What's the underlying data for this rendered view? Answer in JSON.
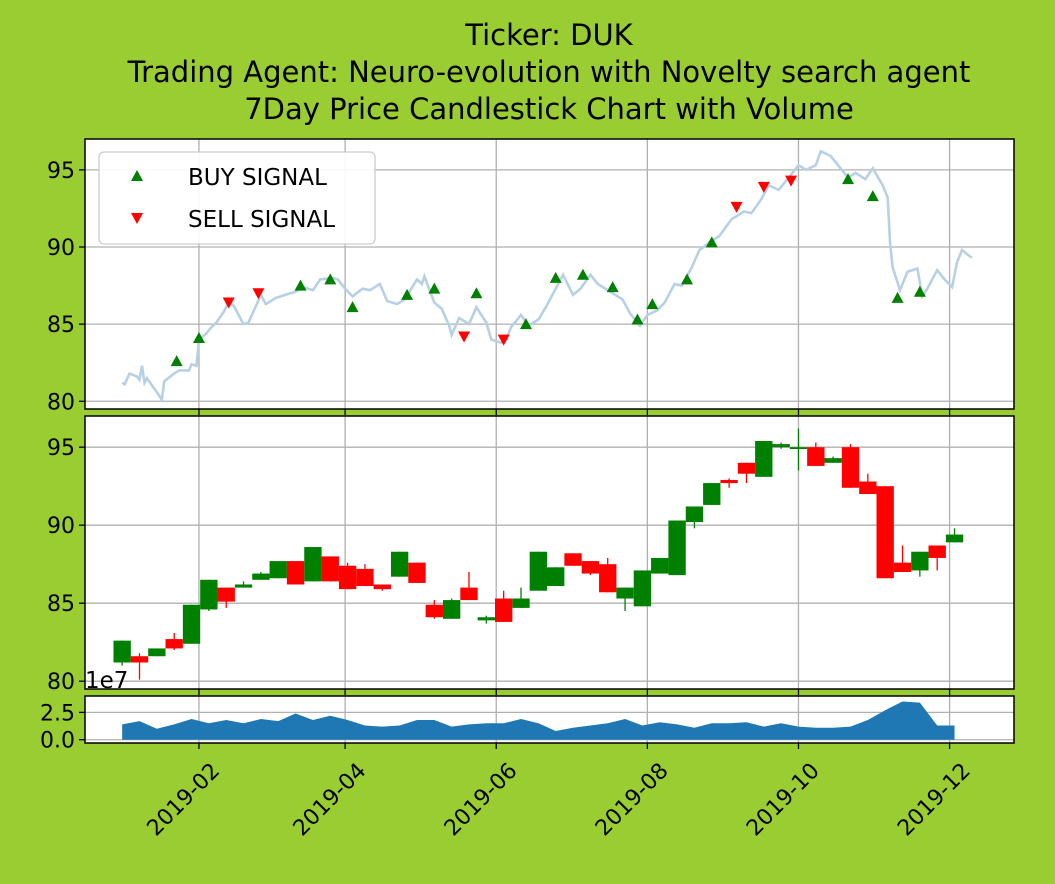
{
  "figure": {
    "background": "#9acd32",
    "title_lines": [
      "Ticker: DUK",
      "Trading Agent: Neuro-evolution with Novelty search agent",
      "7Day Price Candlestick Chart with Volume"
    ]
  },
  "chart_data": [
    {
      "type": "line",
      "panel": "price",
      "ylim": [
        79.5,
        97.0
      ],
      "yticks": [
        80,
        85,
        90,
        95
      ],
      "grid": true,
      "line_color": "#b8d0e6",
      "legend": {
        "placement": "top-left",
        "entries": [
          "BUY SIGNAL",
          "SELL SIGNAL"
        ]
      },
      "close": [
        [
          "2019-01-01",
          81.2
        ],
        [
          "2019-01-02",
          81.1
        ],
        [
          "2019-01-04",
          81.8
        ],
        [
          "2019-01-07",
          81.6
        ],
        [
          "2019-01-08",
          81.4
        ],
        [
          "2019-01-09",
          82.3
        ],
        [
          "2019-01-10",
          81.2
        ],
        [
          "2019-01-11",
          81.5
        ],
        [
          "2019-01-14",
          80.8
        ],
        [
          "2019-01-15",
          80.6
        ],
        [
          "2019-01-17",
          80.1
        ],
        [
          "2019-01-18",
          81.3
        ],
        [
          "2019-01-22",
          81.8
        ],
        [
          "2019-01-24",
          82.0
        ],
        [
          "2019-01-28",
          82.0
        ],
        [
          "2019-01-29",
          82.4
        ],
        [
          "2019-01-31",
          82.3
        ],
        [
          "2019-02-01",
          84.0
        ],
        [
          "2019-02-04",
          84.4
        ],
        [
          "2019-02-06",
          84.8
        ],
        [
          "2019-02-08",
          85.1
        ],
        [
          "2019-02-11",
          85.8
        ],
        [
          "2019-02-13",
          86.4
        ],
        [
          "2019-02-15",
          86.2
        ],
        [
          "2019-02-19",
          85.0
        ],
        [
          "2019-02-21",
          85.1
        ],
        [
          "2019-02-26",
          86.9
        ],
        [
          "2019-02-28",
          86.3
        ],
        [
          "2019-03-04",
          86.7
        ],
        [
          "2019-03-08",
          86.9
        ],
        [
          "2019-03-12",
          87.1
        ],
        [
          "2019-03-15",
          87.4
        ],
        [
          "2019-03-19",
          87.2
        ],
        [
          "2019-03-22",
          87.9
        ],
        [
          "2019-03-27",
          88.0
        ],
        [
          "2019-03-29",
          87.9
        ],
        [
          "2019-04-01",
          87.3
        ],
        [
          "2019-04-04",
          86.8
        ],
        [
          "2019-04-08",
          87.3
        ],
        [
          "2019-04-11",
          87.2
        ],
        [
          "2019-04-15",
          87.6
        ],
        [
          "2019-04-18",
          86.5
        ],
        [
          "2019-04-22",
          86.3
        ],
        [
          "2019-04-25",
          86.6
        ],
        [
          "2019-04-30",
          87.9
        ],
        [
          "2019-05-02",
          87.6
        ],
        [
          "2019-05-03",
          88.1
        ],
        [
          "2019-05-07",
          86.4
        ],
        [
          "2019-05-10",
          86.0
        ],
        [
          "2019-05-13",
          84.9
        ],
        [
          "2019-05-14",
          84.3
        ],
        [
          "2019-05-17",
          85.4
        ],
        [
          "2019-05-21",
          85.0
        ],
        [
          "2019-05-24",
          86.1
        ],
        [
          "2019-05-28",
          85.1
        ],
        [
          "2019-05-30",
          84.0
        ],
        [
          "2019-06-03",
          83.8
        ],
        [
          "2019-06-05",
          84.0
        ],
        [
          "2019-06-07",
          84.8
        ],
        [
          "2019-06-11",
          85.6
        ],
        [
          "2019-06-14",
          84.9
        ],
        [
          "2019-06-18",
          85.3
        ],
        [
          "2019-06-21",
          86.1
        ],
        [
          "2019-06-25",
          87.3
        ],
        [
          "2019-06-28",
          88.2
        ],
        [
          "2019-07-02",
          86.9
        ],
        [
          "2019-07-05",
          87.3
        ],
        [
          "2019-07-09",
          88.2
        ],
        [
          "2019-07-12",
          87.6
        ],
        [
          "2019-07-17",
          87.1
        ],
        [
          "2019-07-22",
          86.6
        ],
        [
          "2019-07-25",
          85.7
        ],
        [
          "2019-07-29",
          84.9
        ],
        [
          "2019-08-01",
          85.6
        ],
        [
          "2019-08-05",
          85.9
        ],
        [
          "2019-08-08",
          86.4
        ],
        [
          "2019-08-12",
          87.6
        ],
        [
          "2019-08-15",
          87.5
        ],
        [
          "2019-08-19",
          88.7
        ],
        [
          "2019-08-22",
          89.8
        ],
        [
          "2019-08-27",
          90.4
        ],
        [
          "2019-08-30",
          90.7
        ],
        [
          "2019-09-04",
          91.8
        ],
        [
          "2019-09-09",
          92.3
        ],
        [
          "2019-09-12",
          92.2
        ],
        [
          "2019-09-16",
          93.1
        ],
        [
          "2019-09-19",
          94.0
        ],
        [
          "2019-09-23",
          93.7
        ],
        [
          "2019-09-26",
          94.3
        ],
        [
          "2019-10-01",
          95.3
        ],
        [
          "2019-10-04",
          95.0
        ],
        [
          "2019-10-08",
          95.3
        ],
        [
          "2019-10-10",
          96.2
        ],
        [
          "2019-10-14",
          95.9
        ],
        [
          "2019-10-17",
          95.3
        ],
        [
          "2019-10-21",
          94.5
        ],
        [
          "2019-10-24",
          94.8
        ],
        [
          "2019-10-28",
          94.4
        ],
        [
          "2019-10-31",
          95.1
        ],
        [
          "2019-11-04",
          94.0
        ],
        [
          "2019-11-06",
          93.2
        ],
        [
          "2019-11-07",
          90.2
        ],
        [
          "2019-11-08",
          88.7
        ],
        [
          "2019-11-11",
          87.2
        ],
        [
          "2019-11-14",
          88.4
        ],
        [
          "2019-11-18",
          88.6
        ],
        [
          "2019-11-20",
          86.8
        ],
        [
          "2019-11-22",
          87.3
        ],
        [
          "2019-11-26",
          88.5
        ],
        [
          "2019-11-29",
          87.9
        ],
        [
          "2019-12-02",
          87.4
        ],
        [
          "2019-12-04",
          89.0
        ],
        [
          "2019-12-06",
          89.8
        ],
        [
          "2019-12-10",
          89.3
        ]
      ],
      "series": [
        {
          "name": "BUY SIGNAL",
          "marker": "triangle-up",
          "color": "#008000",
          "points": [
            [
              "2019-01-23",
              82.6
            ],
            [
              "2019-02-01",
              84.1
            ],
            [
              "2019-03-14",
              87.5
            ],
            [
              "2019-03-26",
              87.9
            ],
            [
              "2019-04-04",
              86.1
            ],
            [
              "2019-04-26",
              86.9
            ],
            [
              "2019-05-07",
              87.3
            ],
            [
              "2019-05-24",
              87.0
            ],
            [
              "2019-06-13",
              85.0
            ],
            [
              "2019-06-25",
              88.0
            ],
            [
              "2019-07-06",
              88.2
            ],
            [
              "2019-07-18",
              87.4
            ],
            [
              "2019-07-28",
              85.3
            ],
            [
              "2019-08-03",
              86.3
            ],
            [
              "2019-08-17",
              87.9
            ],
            [
              "2019-08-27",
              90.3
            ],
            [
              "2019-10-21",
              94.4
            ],
            [
              "2019-10-31",
              93.3
            ],
            [
              "2019-11-10",
              86.7
            ],
            [
              "2019-11-19",
              87.1
            ]
          ]
        },
        {
          "name": "SELL SIGNAL",
          "marker": "triangle-down",
          "color": "#ff0000",
          "points": [
            [
              "2019-02-13",
              86.4
            ],
            [
              "2019-02-25",
              87.0
            ],
            [
              "2019-05-19",
              84.2
            ],
            [
              "2019-06-04",
              84.0
            ],
            [
              "2019-09-06",
              92.6
            ],
            [
              "2019-09-17",
              93.9
            ],
            [
              "2019-09-28",
              94.3
            ]
          ]
        }
      ]
    },
    {
      "type": "candlestick",
      "panel": "candles",
      "ylim": [
        79.5,
        97.0
      ],
      "yticks": [
        80,
        85,
        90,
        95
      ],
      "grid": true,
      "period": "7Day",
      "up_color": "#008000",
      "down_color": "#ff0000",
      "candles": [
        [
          "2019-01-01",
          81.2,
          82.6,
          81.0,
          82.6
        ],
        [
          "2019-01-08",
          81.6,
          81.8,
          80.1,
          81.2
        ],
        [
          "2019-01-15",
          81.6,
          82.1,
          81.6,
          82.1
        ],
        [
          "2019-01-22",
          82.7,
          83.1,
          82.0,
          82.1
        ],
        [
          "2019-01-29",
          82.4,
          84.9,
          82.4,
          84.9
        ],
        [
          "2019-02-05",
          84.6,
          86.5,
          84.5,
          86.5
        ],
        [
          "2019-02-12",
          86.0,
          86.0,
          84.7,
          85.1
        ],
        [
          "2019-02-19",
          86.0,
          86.4,
          86.0,
          86.2
        ],
        [
          "2019-02-26",
          86.5,
          87.0,
          86.5,
          86.9
        ],
        [
          "2019-03-05",
          86.6,
          87.7,
          86.6,
          87.7
        ],
        [
          "2019-03-12",
          87.7,
          87.7,
          86.2,
          86.2
        ],
        [
          "2019-03-19",
          86.4,
          88.6,
          86.4,
          88.6
        ],
        [
          "2019-03-26",
          88.0,
          88.0,
          86.4,
          86.4
        ],
        [
          "2019-04-02",
          87.4,
          87.6,
          85.9,
          85.9
        ],
        [
          "2019-04-09",
          87.2,
          87.5,
          86.1,
          86.1
        ],
        [
          "2019-04-16",
          86.2,
          86.2,
          85.8,
          85.9
        ],
        [
          "2019-04-23",
          86.7,
          88.3,
          86.7,
          88.3
        ],
        [
          "2019-04-30",
          87.6,
          87.6,
          86.3,
          86.3
        ],
        [
          "2019-05-07",
          84.9,
          85.2,
          84.0,
          84.1
        ],
        [
          "2019-05-14",
          84.0,
          85.3,
          84.0,
          85.2
        ],
        [
          "2019-05-21",
          86.0,
          87.0,
          85.2,
          85.2
        ],
        [
          "2019-05-28",
          83.9,
          84.2,
          83.7,
          84.1
        ],
        [
          "2019-06-04",
          85.3,
          85.8,
          83.8,
          83.8
        ],
        [
          "2019-06-11",
          84.7,
          86.0,
          84.7,
          85.3
        ],
        [
          "2019-06-18",
          85.8,
          88.3,
          85.8,
          88.3
        ],
        [
          "2019-06-25",
          86.1,
          87.3,
          86.1,
          87.3
        ],
        [
          "2019-07-02",
          88.2,
          88.2,
          87.4,
          87.4
        ],
        [
          "2019-07-09",
          87.7,
          87.7,
          86.8,
          86.9
        ],
        [
          "2019-07-16",
          87.5,
          87.9,
          85.7,
          85.7
        ],
        [
          "2019-07-23",
          85.3,
          86.0,
          84.5,
          86.0
        ],
        [
          "2019-07-30",
          84.8,
          87.1,
          84.8,
          87.1
        ],
        [
          "2019-08-06",
          86.9,
          87.9,
          86.9,
          87.9
        ],
        [
          "2019-08-13",
          86.8,
          90.3,
          86.8,
          90.3
        ],
        [
          "2019-08-20",
          90.2,
          91.2,
          89.8,
          91.2
        ],
        [
          "2019-08-27",
          91.3,
          92.7,
          91.3,
          92.7
        ],
        [
          "2019-09-03",
          92.9,
          93.0,
          92.4,
          92.7
        ],
        [
          "2019-09-10",
          94.0,
          94.0,
          92.7,
          93.3
        ],
        [
          "2019-09-17",
          93.1,
          95.4,
          93.1,
          95.4
        ],
        [
          "2019-09-24",
          95.0,
          95.3,
          94.9,
          95.2
        ],
        [
          "2019-10-01",
          95.0,
          96.2,
          93.5,
          95.0
        ],
        [
          "2019-10-08",
          95.0,
          95.3,
          93.8,
          93.8
        ],
        [
          "2019-10-15",
          94.0,
          94.4,
          94.0,
          94.3
        ],
        [
          "2019-10-22",
          95.0,
          95.2,
          92.4,
          92.4
        ],
        [
          "2019-10-29",
          92.8,
          93.3,
          92.0,
          92.0
        ],
        [
          "2019-11-05",
          92.5,
          92.5,
          86.6,
          86.6
        ],
        [
          "2019-11-12",
          87.6,
          88.7,
          87.0,
          87.0
        ],
        [
          "2019-11-19",
          87.1,
          88.3,
          86.7,
          88.3
        ],
        [
          "2019-11-26",
          88.7,
          88.7,
          87.1,
          87.9
        ],
        [
          "2019-12-03",
          88.9,
          89.8,
          88.9,
          89.4
        ]
      ]
    },
    {
      "type": "area",
      "panel": "volume",
      "ylim": [
        -0.3,
        4.0
      ],
      "yticks": [
        0.0,
        2.5
      ],
      "ytick_labels": [
        "0.0",
        "2.5"
      ],
      "offset_text": "1e7",
      "grid": true,
      "fill_color": "#1f77b4",
      "x": [
        "2019-01-01",
        "2019-01-08",
        "2019-01-15",
        "2019-01-22",
        "2019-01-29",
        "2019-02-05",
        "2019-02-12",
        "2019-02-19",
        "2019-02-26",
        "2019-03-05",
        "2019-03-12",
        "2019-03-19",
        "2019-03-26",
        "2019-04-02",
        "2019-04-09",
        "2019-04-16",
        "2019-04-23",
        "2019-04-30",
        "2019-05-07",
        "2019-05-14",
        "2019-05-21",
        "2019-05-28",
        "2019-06-04",
        "2019-06-11",
        "2019-06-18",
        "2019-06-25",
        "2019-07-02",
        "2019-07-09",
        "2019-07-16",
        "2019-07-23",
        "2019-07-30",
        "2019-08-06",
        "2019-08-13",
        "2019-08-20",
        "2019-08-27",
        "2019-09-03",
        "2019-09-10",
        "2019-09-17",
        "2019-09-24",
        "2019-10-01",
        "2019-10-08",
        "2019-10-15",
        "2019-10-22",
        "2019-10-29",
        "2019-11-05",
        "2019-11-12",
        "2019-11-19",
        "2019-11-26",
        "2019-12-03"
      ],
      "values": [
        1.4,
        1.7,
        1.0,
        1.4,
        1.9,
        1.5,
        1.8,
        1.5,
        1.9,
        1.7,
        2.4,
        1.8,
        2.2,
        1.8,
        1.3,
        1.2,
        1.3,
        1.8,
        1.8,
        1.2,
        1.4,
        1.5,
        1.5,
        1.9,
        1.5,
        0.8,
        1.1,
        1.3,
        1.5,
        1.9,
        1.3,
        1.6,
        1.4,
        1.1,
        1.5,
        1.5,
        1.6,
        1.2,
        1.5,
        1.2,
        1.1,
        1.1,
        1.2,
        1.8,
        2.7,
        3.5,
        3.4,
        1.3,
        1.3
      ]
    }
  ],
  "x_axis": {
    "ticks": [
      "2019-02",
      "2019-04",
      "2019-06",
      "2019-08",
      "2019-10",
      "2019-12"
    ],
    "range": [
      "2018-12-17",
      "2019-12-27"
    ]
  }
}
